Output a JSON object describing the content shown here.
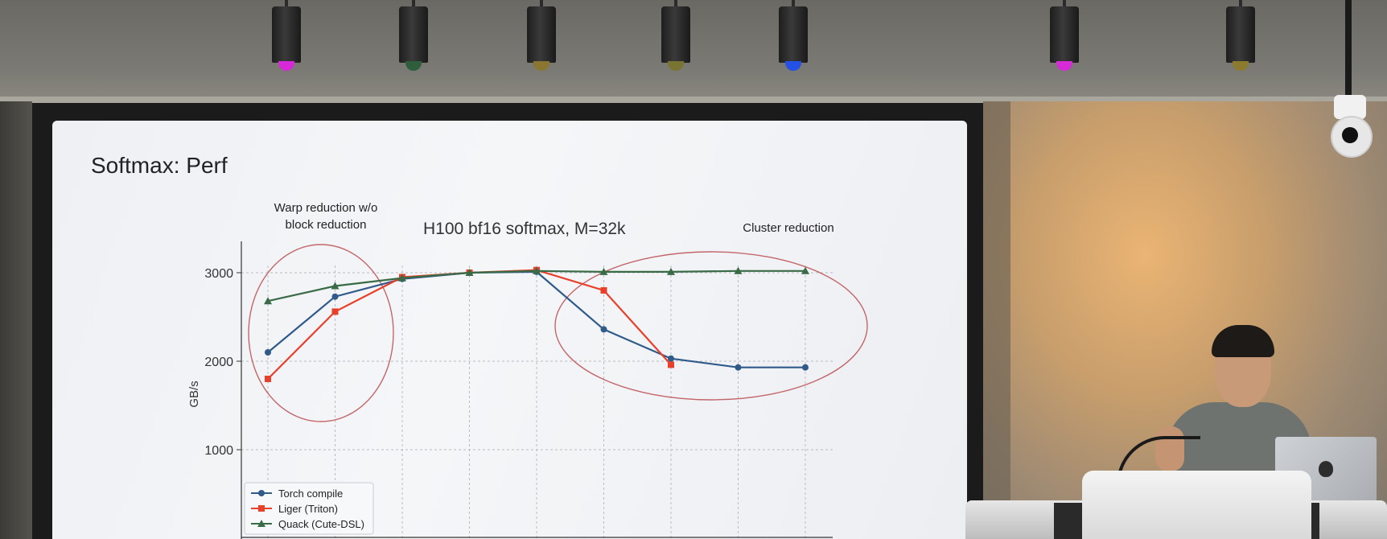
{
  "slide": {
    "title": "Softmax: Perf",
    "annotations": {
      "warp": "Warp reduction w/o\nblock reduction",
      "cluster": "Cluster reduction"
    }
  },
  "chart_data": {
    "type": "line",
    "title": "H100 bf16 softmax, M=32k",
    "xlabel": "",
    "ylabel": "GB/s",
    "ylim": [
      0,
      3000
    ],
    "yticks": [
      1000,
      2000,
      3000
    ],
    "grid": true,
    "legend_position": "bottom-left",
    "x": [
      1,
      2,
      3,
      4,
      5,
      6,
      7,
      8,
      9
    ],
    "series": [
      {
        "name": "Torch compile",
        "color": "#2f5a8a",
        "marker": "circle",
        "values": [
          2100,
          2730,
          2930,
          3000,
          3010,
          2360,
          2030,
          1930,
          1930
        ]
      },
      {
        "name": "Liger (Triton)",
        "color": "#e8402a",
        "marker": "square",
        "values": [
          1800,
          2560,
          2950,
          3000,
          3030,
          2800,
          1960,
          null,
          null
        ]
      },
      {
        "name": "Quack (Cute-DSL)",
        "color": "#3a6b47",
        "marker": "triangle",
        "values": [
          2680,
          2850,
          2940,
          3000,
          3020,
          3010,
          3010,
          3020,
          3020
        ]
      }
    ]
  }
}
